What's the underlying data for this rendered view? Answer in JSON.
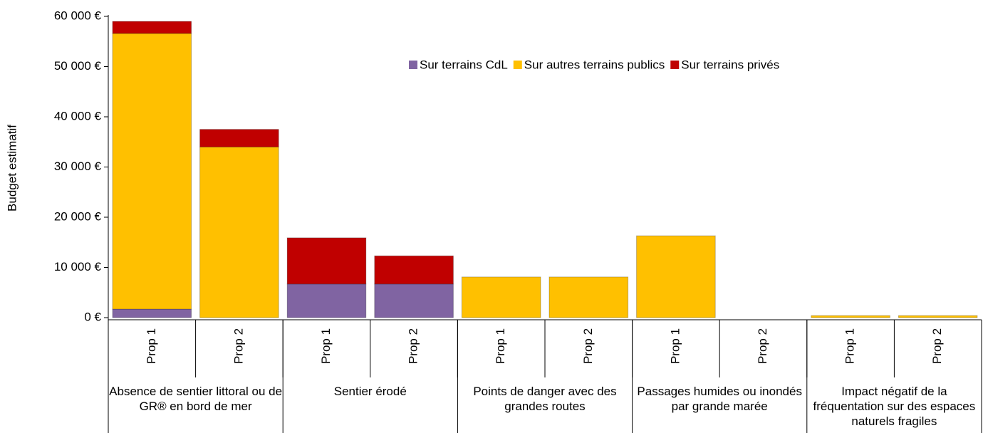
{
  "chart_data": {
    "type": "stacked_bar",
    "y_label": "Budget estimatif",
    "categories": [
      "Prop 1",
      "Prop 2",
      "Prop 1",
      "Prop 2",
      "Prop 1",
      "Prop 2",
      "Prop 1",
      "Prop 2",
      "Prop 1",
      "Prop 2"
    ],
    "groups": [
      "Absence de sentier littoral ou de GR® en bord de mer",
      "Sentier érodé",
      "Points de danger avec des grandes routes",
      "Passages humides ou inondés par grande marée",
      "Impact négatif de la fréquentation sur des espaces naturels fragiles"
    ],
    "series": [
      {
        "name": "Sur terrains CdL",
        "color": "#8064a2",
        "values": [
          1700,
          0,
          6700,
          6700,
          0,
          0,
          0,
          0,
          0,
          0
        ]
      },
      {
        "name": "Sur autres terrains publics",
        "color": "#ffc000",
        "values": [
          54900,
          34000,
          0,
          0,
          8100,
          8100,
          16300,
          0,
          400,
          400
        ]
      },
      {
        "name": "Sur terrains privés",
        "color": "#c00000",
        "values": [
          2400,
          3500,
          9200,
          5600,
          0,
          0,
          0,
          0,
          0,
          0
        ]
      }
    ],
    "ylim": [
      0,
      60000
    ],
    "yticks": [
      {
        "value": 0,
        "label": "0 €"
      },
      {
        "value": 10000,
        "label": "10 000 €"
      },
      {
        "value": 20000,
        "label": "20 000 €"
      },
      {
        "value": 30000,
        "label": "30 000 €"
      },
      {
        "value": 40000,
        "label": "40 000 €"
      },
      {
        "value": 50000,
        "label": "50 000 €"
      },
      {
        "value": 60000,
        "label": "60 000 €"
      }
    ],
    "legend": "top-right"
  }
}
